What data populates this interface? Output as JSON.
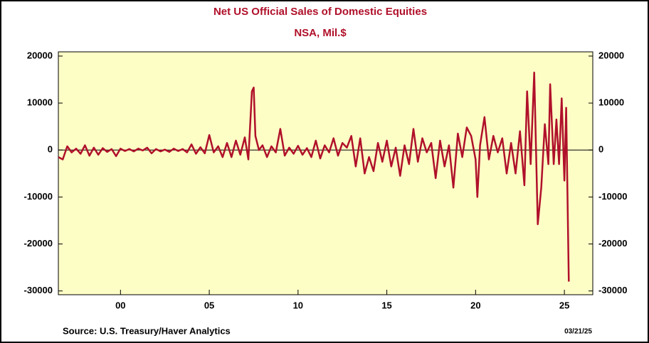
{
  "chart_data": {
    "type": "line",
    "title": "Net US Official Sales of Domestic Equities",
    "subtitle": "NSA, Mil.$",
    "source": "Source:  U.S. Treasury/Haver Analytics",
    "date": "03/21/25",
    "xlim": [
      1996.5,
      2026.6
    ],
    "xticks": [
      {
        "value": 2000,
        "label": "00"
      },
      {
        "value": 2005,
        "label": "05"
      },
      {
        "value": 2010,
        "label": "10"
      },
      {
        "value": 2015,
        "label": "15"
      },
      {
        "value": 2020,
        "label": "20"
      },
      {
        "value": 2025,
        "label": "25"
      }
    ],
    "ylim": [
      -30800,
      20900
    ],
    "yticks": [
      -30000,
      -20000,
      -10000,
      0,
      10000,
      20000
    ],
    "zero_line": true,
    "plot_background": "#fdfdc6",
    "series": [
      {
        "color": "#b0102a",
        "x": [
          1996.5,
          1996.75,
          1997,
          1997.25,
          1997.5,
          1997.75,
          1998,
          1998.25,
          1998.5,
          1998.75,
          1999,
          1999.25,
          1999.5,
          1999.75,
          2000,
          2000.25,
          2000.5,
          2000.75,
          2001,
          2001.25,
          2001.5,
          2001.75,
          2002,
          2002.25,
          2002.5,
          2002.75,
          2003,
          2003.25,
          2003.5,
          2003.75,
          2004,
          2004.25,
          2004.5,
          2004.75,
          2005,
          2005.25,
          2005.5,
          2005.75,
          2006,
          2006.25,
          2006.5,
          2006.75,
          2007,
          2007.2,
          2007.4,
          2007.5,
          2007.6,
          2007.8,
          2008,
          2008.25,
          2008.5,
          2008.75,
          2009,
          2009.25,
          2009.5,
          2009.75,
          2010,
          2010.25,
          2010.5,
          2010.75,
          2011,
          2011.25,
          2011.5,
          2011.75,
          2012,
          2012.25,
          2012.5,
          2012.75,
          2013,
          2013.25,
          2013.5,
          2013.75,
          2014,
          2014.25,
          2014.5,
          2014.75,
          2015,
          2015.25,
          2015.5,
          2015.75,
          2016,
          2016.25,
          2016.5,
          2016.75,
          2017,
          2017.25,
          2017.5,
          2017.75,
          2018,
          2018.25,
          2018.5,
          2018.75,
          2019,
          2019.25,
          2019.5,
          2019.75,
          2020,
          2020.1,
          2020.25,
          2020.5,
          2020.75,
          2021,
          2021.25,
          2021.5,
          2021.75,
          2022,
          2022.25,
          2022.5,
          2022.75,
          2022.9,
          2023.1,
          2023.3,
          2023.5,
          2023.7,
          2023.9,
          2024.1,
          2024.2,
          2024.4,
          2024.55,
          2024.7,
          2024.85,
          2025,
          2025.1,
          2025.25
        ],
        "values": [
          -1500,
          -2000,
          800,
          -500,
          300,
          -800,
          1000,
          -1200,
          500,
          -1000,
          400,
          -400,
          200,
          -1300,
          300,
          -200,
          200,
          -300,
          300,
          -100,
          500,
          -700,
          200,
          -300,
          100,
          -400,
          300,
          -200,
          200,
          -500,
          1200,
          -800,
          600,
          -700,
          3200,
          -500,
          800,
          -1500,
          1500,
          -1500,
          2000,
          -1000,
          2700,
          -2000,
          12500,
          13300,
          3000,
          0,
          1000,
          -1500,
          800,
          -500,
          4500,
          -1200,
          500,
          -800,
          900,
          -1000,
          400,
          -1500,
          2000,
          -1800,
          1000,
          -500,
          2500,
          -1200,
          1500,
          500,
          3000,
          -3500,
          2500,
          -5000,
          -1500,
          -4500,
          1500,
          -2500,
          2000,
          -3500,
          500,
          -5500,
          1000,
          -3000,
          4500,
          -2500,
          2500,
          -500,
          1500,
          -6000,
          2000,
          -3500,
          1000,
          -8000,
          3500,
          -1500,
          4800,
          3000,
          -2000,
          -10000,
          1000,
          7000,
          -2000,
          3000,
          -500,
          2500,
          -5000,
          1500,
          -5000,
          4000,
          -7500,
          12500,
          -3000,
          16500,
          -15800,
          -8000,
          5500,
          -3000,
          14000,
          -3000,
          6500,
          -3000,
          11000,
          -6500,
          9000,
          -28000
        ]
      }
    ]
  }
}
